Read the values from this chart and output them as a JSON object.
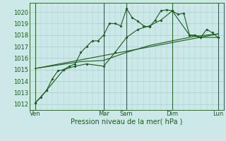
{
  "background_color": "#cce8e8",
  "grid_color": "#aacccc",
  "line_color": "#1a5c1a",
  "title": "Pression niveau de la mer( hPa )",
  "ylim": [
    1011.5,
    1020.8
  ],
  "yticks": [
    1012,
    1013,
    1014,
    1015,
    1016,
    1017,
    1018,
    1019,
    1020
  ],
  "xlim": [
    0,
    34
  ],
  "day_labels": [
    "Ven",
    "Mar",
    "Sam",
    "Dim",
    "Lun"
  ],
  "day_positions": [
    1,
    13,
    17,
    25,
    33
  ],
  "series1_x": [
    1,
    2,
    3,
    4,
    5,
    6,
    7,
    8,
    9,
    10,
    11,
    12,
    13,
    14,
    15,
    16,
    17,
    18,
    19,
    20,
    21,
    22,
    23,
    24,
    25,
    26,
    27,
    28,
    29,
    30,
    31,
    32,
    33
  ],
  "series1_y": [
    1012.1,
    1012.6,
    1013.2,
    1014.2,
    1014.9,
    1015.0,
    1015.3,
    1015.5,
    1016.5,
    1017.0,
    1017.5,
    1017.5,
    1018.0,
    1019.0,
    1019.0,
    1018.8,
    1020.3,
    1019.5,
    1019.2,
    1018.8,
    1018.7,
    1019.3,
    1020.1,
    1020.2,
    1020.1,
    1019.8,
    1019.9,
    1018.0,
    1018.0,
    1017.8,
    1018.5,
    1018.2,
    1017.8
  ],
  "series2_x": [
    1,
    3,
    6,
    8,
    10,
    13,
    15,
    17,
    19,
    21,
    23,
    25,
    28,
    30,
    33
  ],
  "series2_y": [
    1012.1,
    1013.2,
    1015.0,
    1015.3,
    1015.5,
    1015.3,
    1016.5,
    1017.8,
    1018.5,
    1018.8,
    1019.3,
    1020.1,
    1018.0,
    1017.8,
    1017.8
  ],
  "series3_x": [
    1,
    33
  ],
  "series3_y": [
    1015.1,
    1018.1
  ],
  "series4_x": [
    1,
    5,
    9,
    13,
    17,
    21,
    25,
    29,
    33
  ],
  "series4_y": [
    1015.1,
    1015.4,
    1015.7,
    1015.8,
    1016.5,
    1017.1,
    1017.5,
    1017.9,
    1018.1
  ]
}
